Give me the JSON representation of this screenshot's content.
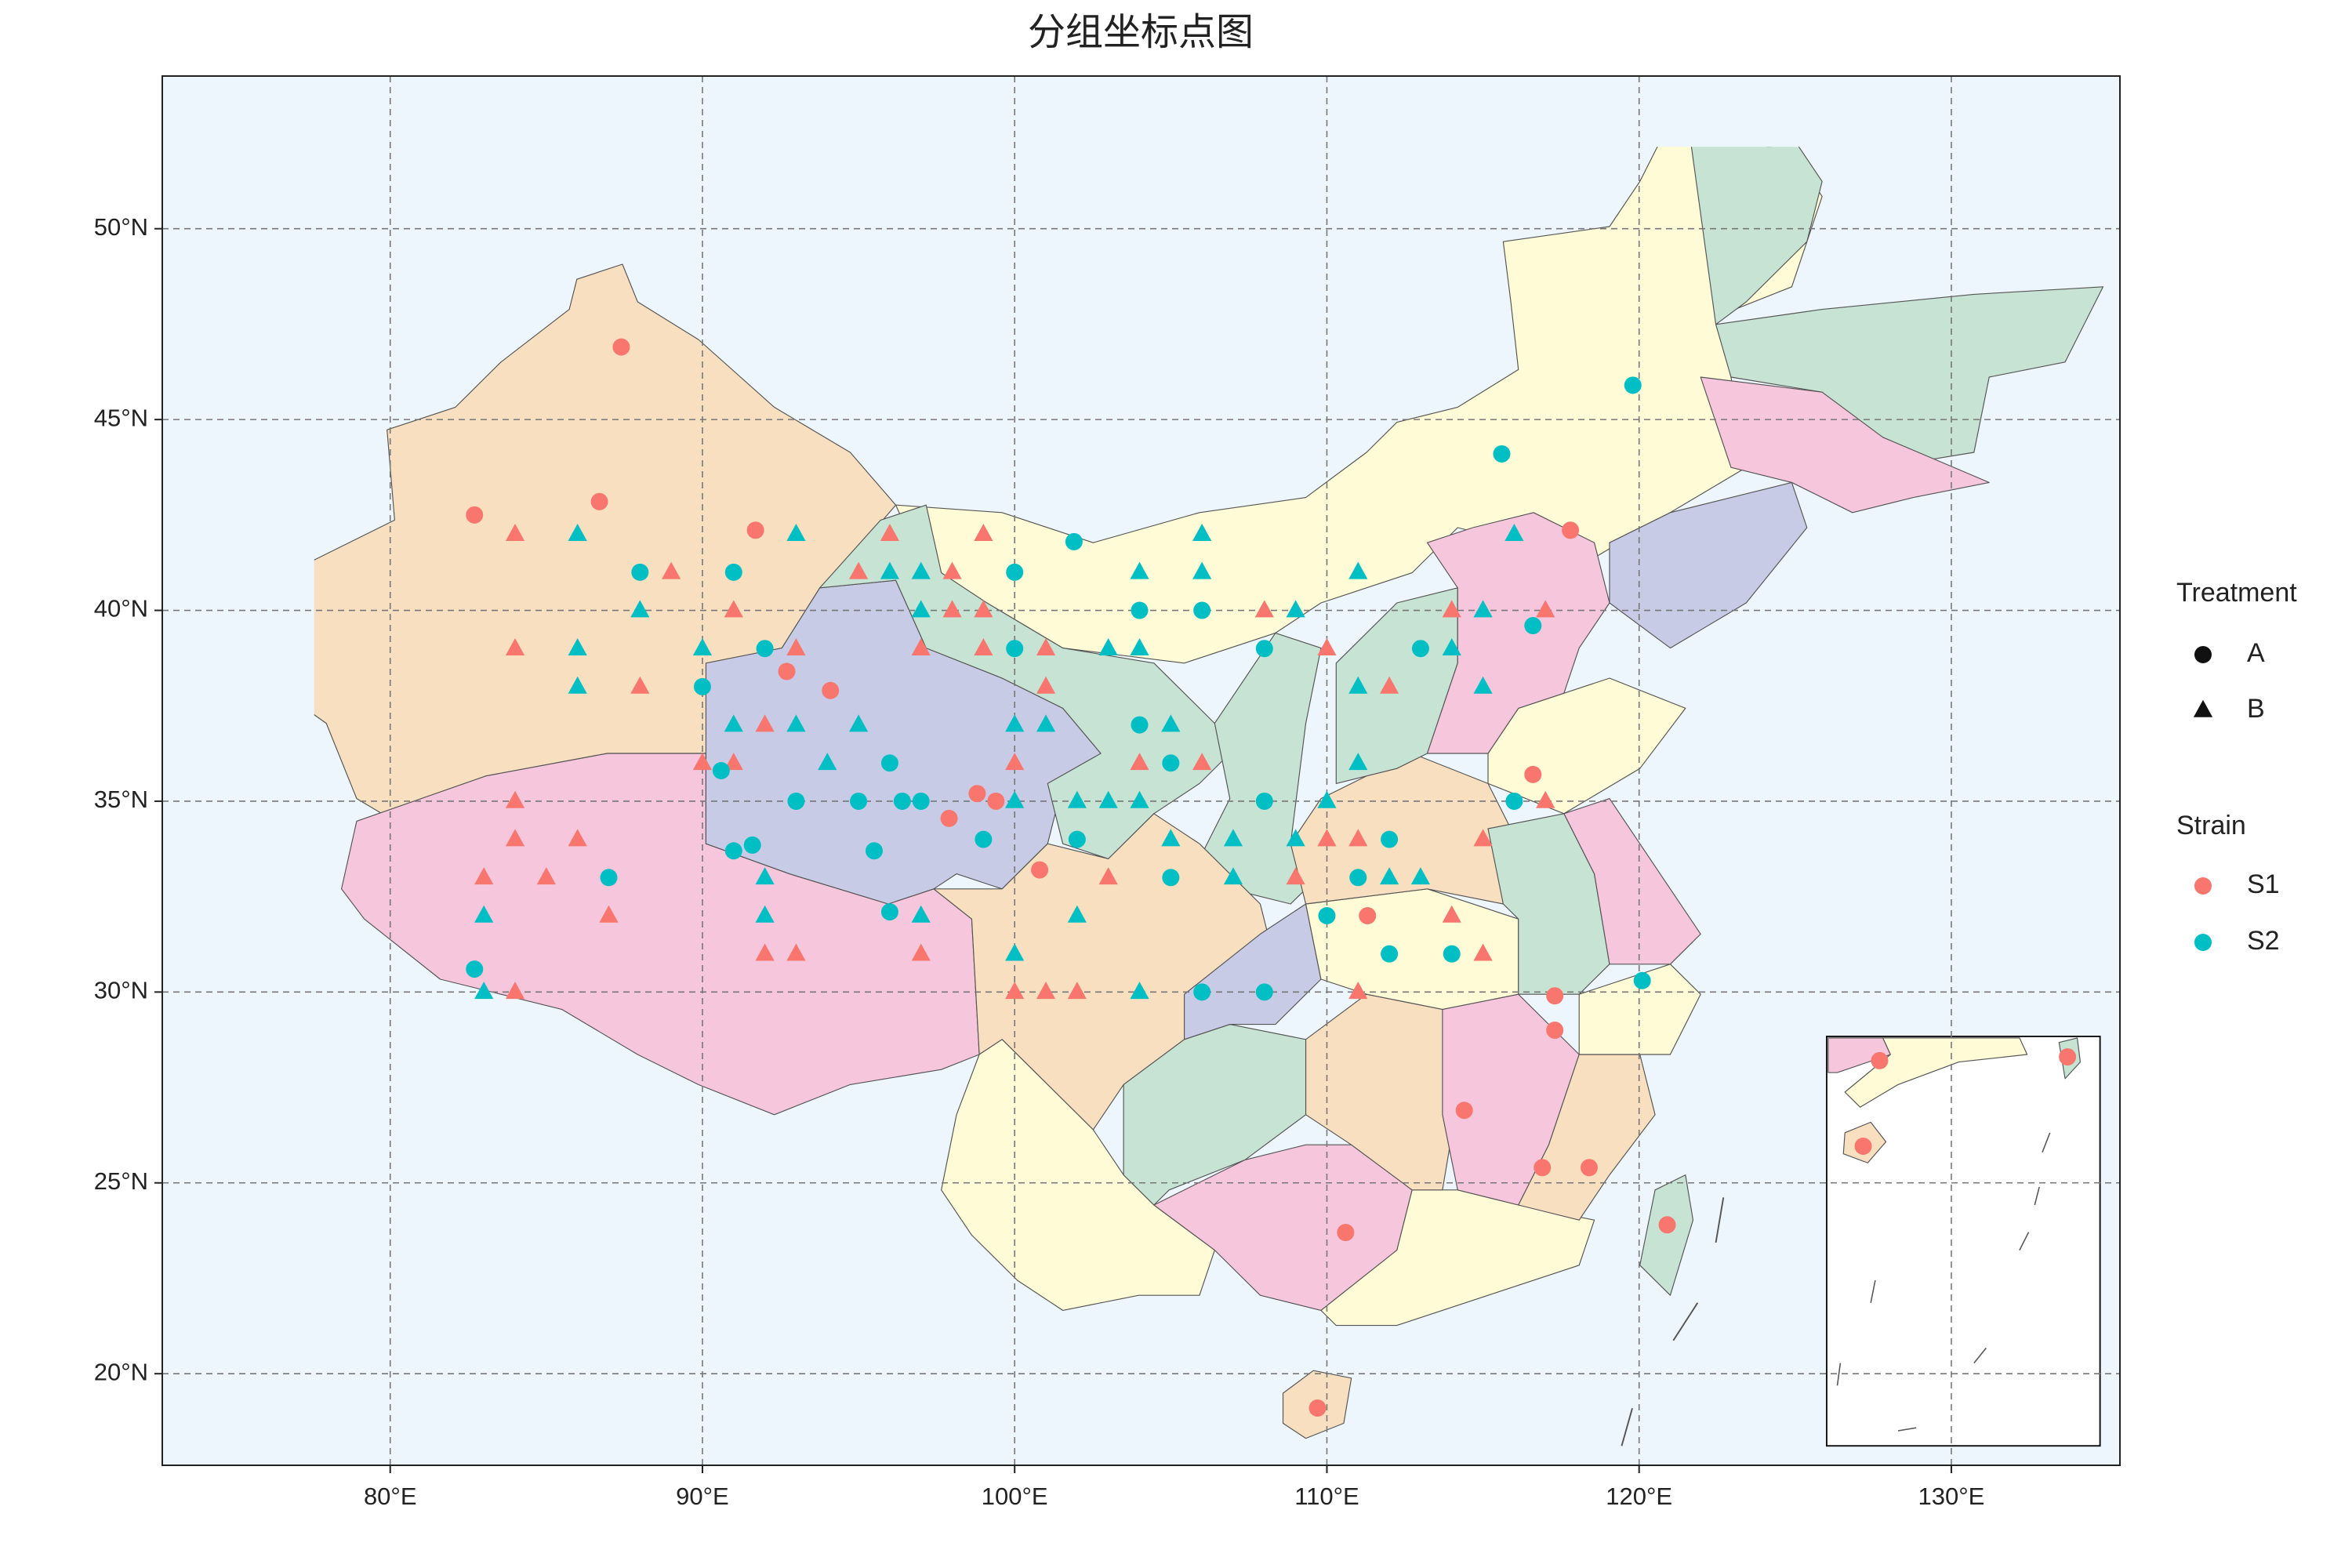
{
  "chart_data": {
    "type": "scatter",
    "title": "分组坐标点图",
    "xlim": [
      72.7,
      135.4
    ],
    "ylim": [
      17.6,
      54.0
    ],
    "xticks": [
      {
        "value": 80,
        "label": "80°E"
      },
      {
        "value": 90,
        "label": "90°E"
      },
      {
        "value": 100,
        "label": "100°E"
      },
      {
        "value": 110,
        "label": "110°E"
      },
      {
        "value": 120,
        "label": "120°E"
      },
      {
        "value": 130,
        "label": "130°E"
      }
    ],
    "yticks": [
      {
        "value": 20,
        "label": "20°N"
      },
      {
        "value": 25,
        "label": "25°N"
      },
      {
        "value": 30,
        "label": "30°N"
      },
      {
        "value": 35,
        "label": "35°N"
      },
      {
        "value": 40,
        "label": "40°N"
      },
      {
        "value": 45,
        "label": "45°N"
      },
      {
        "value": 50,
        "label": "50°N"
      }
    ],
    "grid": true,
    "shape_legend": {
      "title": "Treatment",
      "labels": [
        "A",
        "B"
      ],
      "shapes": [
        "circle",
        "triangle"
      ]
    },
    "color_legend": {
      "title": "Strain",
      "labels": [
        "S1",
        "S2"
      ],
      "colors": [
        "#f8766d",
        "#00bfc4"
      ]
    },
    "series": [
      {
        "strain": "S1",
        "treatment": "A",
        "x": [
          87.4,
          82.7,
          86.7,
          91.7,
          92.7,
          94.1,
          98.8,
          99.4,
          97.9,
          100.8,
          111.3,
          116.6,
          117.8,
          117.3,
          117.3,
          114.4,
          116.9,
          118.4,
          110.6,
          120.9,
          109.7
        ],
        "y": [
          46.9,
          42.5,
          42.85,
          42.1,
          38.4,
          37.9,
          35.2,
          35.0,
          34.55,
          33.2,
          32.0,
          35.7,
          42.1,
          29.9,
          29.0,
          26.9,
          25.4,
          25.4,
          23.7,
          23.9,
          19.1
        ]
      },
      {
        "strain": "S1",
        "treatment": "B",
        "x": [
          84,
          89,
          95,
          96,
          98,
          99,
          106,
          84,
          88,
          91,
          91,
          90,
          92,
          93,
          97,
          98,
          99,
          99,
          101,
          101,
          100,
          108,
          110,
          104,
          106,
          84,
          84,
          86,
          83,
          85,
          87,
          92,
          93,
          84,
          97,
          103,
          100,
          101,
          102,
          110,
          109,
          111,
          112,
          111,
          114,
          115,
          115,
          114,
          117,
          117
        ],
        "y": [
          42,
          41,
          41,
          42,
          41,
          42,
          42,
          39,
          38,
          40,
          36,
          36,
          37,
          39,
          39,
          40,
          40,
          39,
          39,
          38,
          36,
          40,
          39,
          36,
          36,
          35,
          34,
          34,
          33,
          33,
          32,
          31,
          31,
          30,
          31,
          33,
          30,
          30,
          30,
          34,
          33,
          34,
          38,
          30,
          32,
          31,
          34,
          40,
          40,
          35
        ]
      },
      {
        "strain": "S2",
        "treatment": "A",
        "x": [
          88,
          91,
          92,
          90,
          90.6,
          91.0,
          91.6,
          93,
          95,
          96,
          95.5,
          96.4,
          97,
          96,
          99,
          100,
          101.9,
          100,
          104,
          106,
          108,
          102,
          104,
          105,
          105,
          108,
          106,
          108,
          110,
          111,
          112,
          112,
          113,
          114,
          116,
          116.6,
          115.6,
          119.8,
          120.1,
          82.7,
          87
        ],
        "y": [
          41,
          41,
          39,
          38,
          35.8,
          33.7,
          33.85,
          35,
          35,
          36,
          33.7,
          35,
          35,
          32.1,
          34,
          41,
          41.8,
          39,
          40,
          40,
          39,
          34,
          37,
          36,
          33,
          35,
          30,
          30,
          32,
          33,
          34,
          31,
          39,
          31,
          35,
          39.6,
          44.1,
          45.9,
          30.3,
          30.6,
          33
        ]
      },
      {
        "strain": "S2",
        "treatment": "B",
        "x": [
          86,
          93,
          88,
          86,
          86,
          90,
          91,
          93,
          94,
          95,
          96,
          97,
          97,
          92,
          92,
          97,
          100,
          101,
          100,
          100,
          102,
          102,
          103,
          104,
          104,
          106,
          106,
          103,
          104,
          105,
          105,
          107,
          107,
          104,
          109,
          109,
          110,
          111,
          111,
          111,
          112,
          113,
          114,
          115,
          115,
          116,
          83,
          83
        ],
        "y": [
          42,
          42,
          40,
          39,
          38,
          39,
          37,
          37,
          36,
          37,
          41,
          41,
          40,
          33,
          32,
          32,
          37,
          37,
          35,
          31,
          32,
          35,
          39,
          39,
          41,
          42,
          41,
          35,
          35,
          37,
          34,
          34,
          33,
          30,
          40,
          34,
          35,
          38,
          36,
          41,
          33,
          33,
          39,
          40,
          38,
          42,
          32,
          30
        ]
      }
    ],
    "inset": {
      "xlim": [
        107.7,
        122.7
      ],
      "ylim": [
        3.0,
        25.0
      ]
    }
  }
}
